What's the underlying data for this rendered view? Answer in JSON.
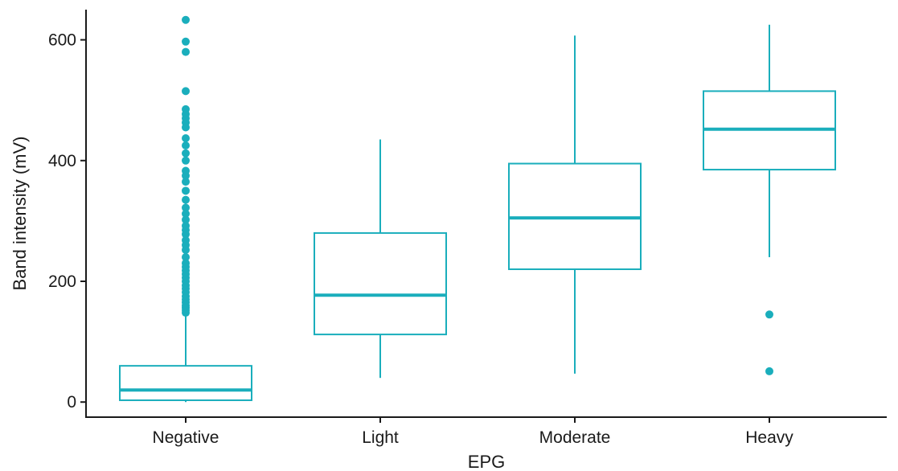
{
  "chart_data": {
    "type": "boxplot",
    "xlabel": "EPG",
    "ylabel": "Band intensity (mV)",
    "ylim": [
      -25,
      650
    ],
    "yticks": [
      0,
      200,
      400,
      600
    ],
    "grid": false,
    "color": "#1aaebc",
    "categories": [
      "Negative",
      "Light",
      "Moderate",
      "Heavy"
    ],
    "boxes": [
      {
        "name": "Negative",
        "whisker_low": 0,
        "q1": 3,
        "median": 20,
        "q3": 60,
        "whisker_high": 145,
        "outliers": [
          148,
          152,
          156,
          160,
          165,
          170,
          175,
          182,
          188,
          193,
          200,
          206,
          212,
          218,
          224,
          230,
          240,
          252,
          260,
          268,
          278,
          285,
          292,
          302,
          312,
          322,
          335,
          350,
          365,
          375,
          383,
          400,
          412,
          425,
          437,
          455,
          463,
          470,
          477,
          485,
          515,
          580,
          597,
          633
        ]
      },
      {
        "name": "Light",
        "whisker_low": 40,
        "q1": 112,
        "median": 177,
        "q3": 280,
        "whisker_high": 435,
        "outliers": []
      },
      {
        "name": "Moderate",
        "whisker_low": 47,
        "q1": 220,
        "median": 305,
        "q3": 395,
        "whisker_high": 607,
        "outliers": []
      },
      {
        "name": "Heavy",
        "whisker_low": 240,
        "q1": 385,
        "median": 452,
        "q3": 515,
        "whisker_high": 625,
        "outliers": [
          145,
          51
        ]
      }
    ]
  }
}
